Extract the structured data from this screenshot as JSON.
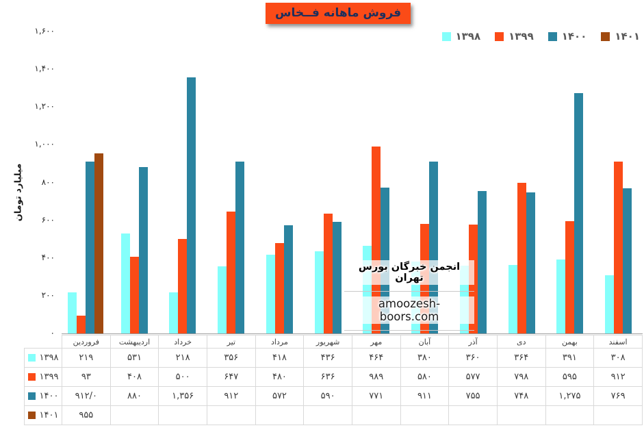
{
  "title": {
    "text": "فروش ماهانه فــخاس",
    "bg_color": "#FB4B17",
    "text_color": "#1E2F5C"
  },
  "watermark": {
    "line1": "انجمن خبرگان بورس تهران",
    "line2": "amoozesh-boors.com"
  },
  "y_axis": {
    "title": "میلیارد تومان",
    "ticks": [
      "۱,۶۰۰",
      "۱,۴۰۰",
      "۱,۲۰۰",
      "۱,۰۰۰",
      "۸۰۰",
      "۶۰۰",
      "۴۰۰",
      "۲۰۰",
      "۰"
    ]
  },
  "chart_data": {
    "type": "bar",
    "title": "فروش ماهانه فــخاس",
    "xlabel": "",
    "ylabel": "میلیارد تومان",
    "ylim": [
      0,
      1600
    ],
    "ytick_step": 200,
    "grid": false,
    "legend_position": "top-right",
    "categories": [
      "فروردین",
      "اردیبهشت",
      "خرداد",
      "تیر",
      "مرداد",
      "شهریور",
      "مهر",
      "آبان",
      "آذر",
      "دی",
      "بهمن",
      "اسفند"
    ],
    "category_slugs": [
      "farvardin",
      "ordibehesht",
      "khordad",
      "tir",
      "mordad",
      "shahrivar",
      "mehr",
      "aban",
      "azar",
      "dey",
      "bahman",
      "esfand"
    ],
    "series": [
      {
        "name": "۱۳۹۸",
        "name_latin": "1398",
        "color": "#84FFFB",
        "values": [
          219,
          531,
          218,
          356,
          418,
          436,
          464,
          380,
          360,
          364,
          391,
          308
        ]
      },
      {
        "name": "۱۳۹۹",
        "name_latin": "1399",
        "color": "#FB4B17",
        "values": [
          93,
          408,
          500,
          647,
          480,
          636,
          989,
          580,
          577,
          798,
          595,
          912
        ]
      },
      {
        "name": "۱۴۰۰",
        "name_latin": "1400",
        "color": "#2B84A0",
        "values": [
          912,
          880,
          1356,
          912,
          572,
          590,
          771,
          911,
          755,
          748,
          1275,
          769
        ]
      },
      {
        "name": "۱۴۰۱",
        "name_latin": "1401",
        "color": "#A04A10",
        "values": [
          955,
          null,
          null,
          null,
          null,
          null,
          null,
          null,
          null,
          null,
          null,
          null
        ]
      }
    ]
  },
  "table": {
    "rows": [
      {
        "year": "۱۳۹۸",
        "latin": "1398",
        "color": "#84FFFB",
        "cells": [
          "۲۱۹",
          "۵۳۱",
          "۲۱۸",
          "۳۵۶",
          "۴۱۸",
          "۴۳۶",
          "۴۶۴",
          "۳۸۰",
          "۳۶۰",
          "۳۶۴",
          "۳۹۱",
          "۳۰۸"
        ]
      },
      {
        "year": "۱۳۹۹",
        "latin": "1399",
        "color": "#FB4B17",
        "cells": [
          "۹۳",
          "۴۰۸",
          "۵۰۰",
          "۶۴۷",
          "۴۸۰",
          "۶۳۶",
          "۹۸۹",
          "۵۸۰",
          "۵۷۷",
          "۷۹۸",
          "۵۹۵",
          "۹۱۲"
        ]
      },
      {
        "year": "۱۴۰۰",
        "latin": "1400",
        "color": "#2B84A0",
        "cells": [
          "۹۱۲/۰",
          "۸۸۰",
          "۱,۳۵۶",
          "۹۱۲",
          "۵۷۲",
          "۵۹۰",
          "۷۷۱",
          "۹۱۱",
          "۷۵۵",
          "۷۴۸",
          "۱,۲۷۵",
          "۷۶۹"
        ]
      },
      {
        "year": "۱۴۰۱",
        "latin": "1401",
        "color": "#A04A10",
        "cells": [
          "۹۵۵",
          "",
          "",
          "",
          "",
          "",
          "",
          "",
          "",
          "",
          "",
          ""
        ]
      }
    ]
  }
}
